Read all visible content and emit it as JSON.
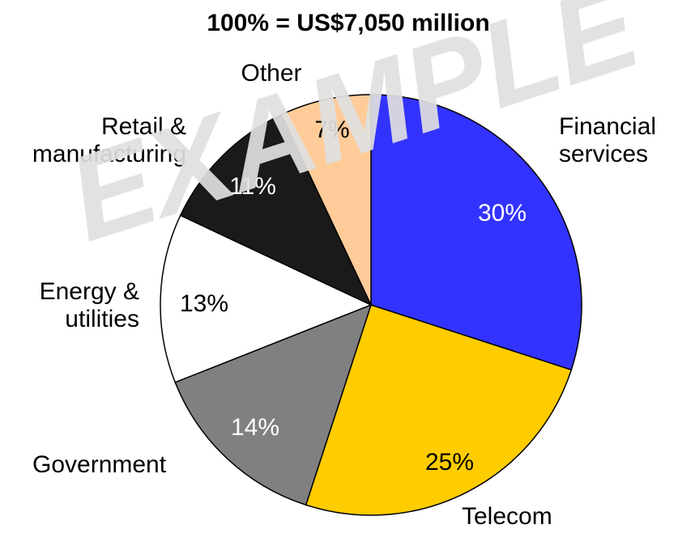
{
  "chart_data": {
    "type": "pie",
    "title": "100% = US$7,050 million",
    "watermark": "EXAMPLE",
    "categories": [
      "Financial services",
      "Telecom",
      "Government",
      "Energy & utilities",
      "Retail & manufacturing",
      "Other"
    ],
    "values": [
      30,
      25,
      14,
      13,
      11,
      7
    ],
    "value_labels": [
      "30%",
      "25%",
      "14%",
      "13%",
      "11%",
      "7%"
    ],
    "colors": [
      "#3333ff",
      "#ffcc00",
      "#808080",
      "#ffffff",
      "#1a1a1a",
      "#ffcc99"
    ],
    "value_label_colors": [
      "#ffffff",
      "#000000",
      "#ffffff",
      "#000000",
      "#ffffff",
      "#000000"
    ]
  }
}
